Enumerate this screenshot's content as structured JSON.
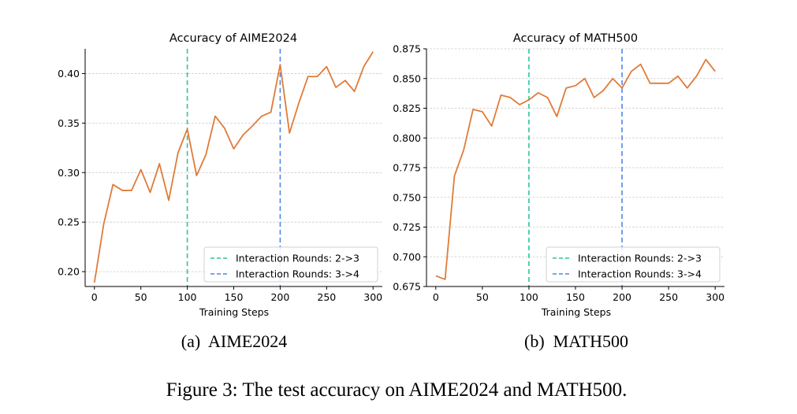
{
  "figure": {
    "caption": "Figure 3: The test accuracy on AIME2024 and MATH500.",
    "line_color": "#e07b39",
    "vline_colors": [
      "#2ec4a0",
      "#4f86e8"
    ]
  },
  "chart_data": [
    {
      "type": "line",
      "title": "Accuracy of AIME2024",
      "subcaption": "(a)  AIME2024",
      "xlabel": "Training Steps",
      "ylabel": "",
      "xlim": [
        -10,
        310
      ],
      "ylim": [
        0.185,
        0.425
      ],
      "xticks": [
        0,
        50,
        100,
        150,
        200,
        250,
        300
      ],
      "yticks": [
        0.2,
        0.25,
        0.3,
        0.35,
        0.4
      ],
      "ytick_labels": [
        "0.20",
        "0.25",
        "0.30",
        "0.35",
        "0.40"
      ],
      "grid": "horizontal dashed",
      "legend_position": "bottom-right",
      "vlines": [
        {
          "x": 100,
          "label": "Interaction Rounds: 2->3",
          "color": "#2ec4a0"
        },
        {
          "x": 200,
          "label": "Interaction Rounds: 3->4",
          "color": "#4f86e8"
        }
      ],
      "x": [
        0,
        10,
        20,
        30,
        40,
        50,
        60,
        70,
        80,
        90,
        100,
        110,
        120,
        130,
        140,
        150,
        160,
        170,
        180,
        190,
        200,
        210,
        220,
        230,
        240,
        250,
        260,
        270,
        280,
        290,
        300
      ],
      "y": [
        0.189,
        0.248,
        0.288,
        0.282,
        0.282,
        0.303,
        0.28,
        0.309,
        0.272,
        0.32,
        0.344,
        0.297,
        0.318,
        0.357,
        0.345,
        0.324,
        0.338,
        0.347,
        0.357,
        0.361,
        0.409,
        0.34,
        0.37,
        0.397,
        0.397,
        0.407,
        0.386,
        0.393,
        0.382,
        0.407,
        0.422
      ]
    },
    {
      "type": "line",
      "title": "Accuracy of MATH500",
      "subcaption": "(b)  MATH500",
      "xlabel": "Training Steps",
      "ylabel": "",
      "xlim": [
        -10,
        310
      ],
      "ylim": [
        0.675,
        0.875
      ],
      "xticks": [
        0,
        50,
        100,
        150,
        200,
        250,
        300
      ],
      "yticks": [
        0.675,
        0.7,
        0.725,
        0.75,
        0.775,
        0.8,
        0.825,
        0.85,
        0.875
      ],
      "ytick_labels": [
        "0.675",
        "0.700",
        "0.725",
        "0.750",
        "0.775",
        "0.800",
        "0.825",
        "0.850",
        "0.875"
      ],
      "grid": "horizontal dashed",
      "legend_position": "bottom-right",
      "vlines": [
        {
          "x": 100,
          "label": "Interaction Rounds: 2->3",
          "color": "#2ec4a0"
        },
        {
          "x": 200,
          "label": "Interaction Rounds: 3->4",
          "color": "#4f86e8"
        }
      ],
      "x": [
        0,
        10,
        20,
        30,
        40,
        50,
        60,
        70,
        80,
        90,
        100,
        110,
        120,
        130,
        140,
        150,
        160,
        170,
        180,
        190,
        200,
        210,
        220,
        230,
        240,
        250,
        260,
        270,
        280,
        290,
        300
      ],
      "y": [
        0.684,
        0.681,
        0.768,
        0.79,
        0.824,
        0.822,
        0.81,
        0.836,
        0.834,
        0.828,
        0.832,
        0.838,
        0.834,
        0.818,
        0.842,
        0.844,
        0.85,
        0.834,
        0.84,
        0.85,
        0.842,
        0.856,
        0.862,
        0.846,
        0.846,
        0.846,
        0.852,
        0.842,
        0.852,
        0.866,
        0.856
      ]
    }
  ]
}
